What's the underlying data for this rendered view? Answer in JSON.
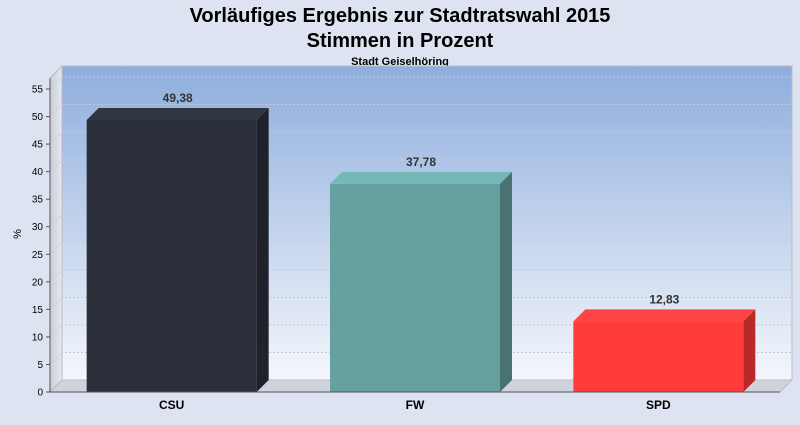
{
  "chart_data": {
    "type": "bar",
    "title_line1": "Vorläufiges Ergebnis zur Stadtratswahl 2015",
    "title_line2": "Stimmen in Prozent",
    "subtitle": "Stadt Geiselhöring",
    "xlabel": "",
    "ylabel": "%",
    "ylim": [
      0,
      57
    ],
    "yticks": [
      0,
      5,
      10,
      15,
      20,
      25,
      30,
      35,
      40,
      45,
      50,
      55
    ],
    "grid": true,
    "categories": [
      "CSU",
      "FW",
      "SPD"
    ],
    "values": [
      49.38,
      37.78,
      12.83
    ],
    "value_labels": [
      "49,38",
      "37,78",
      "12,83"
    ],
    "colors": [
      "#2b2f3a",
      "#66a0a0",
      "#ff3b3b"
    ]
  }
}
